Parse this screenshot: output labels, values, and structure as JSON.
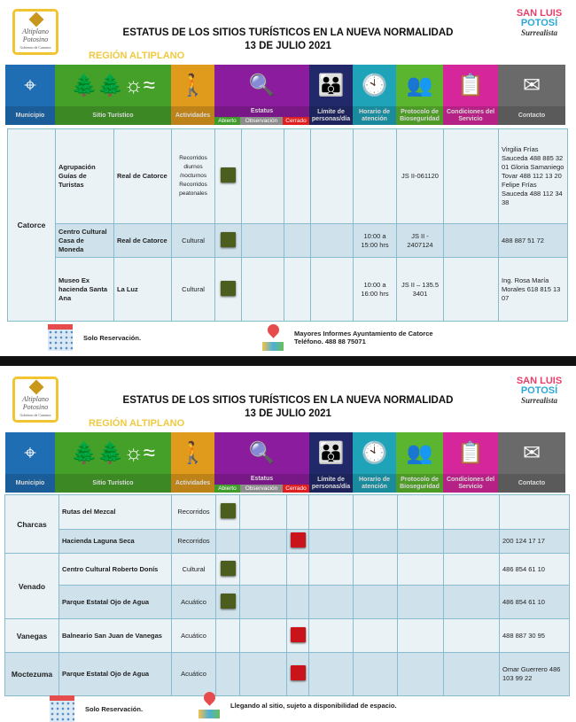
{
  "header": {
    "title_line1": "ESTATUS DE LOS SITIOS TURÍSTICOS EN LA NUEVA NORMALIDAD",
    "title_line2": "13 DE JULIO 2021",
    "region": "REGIÓN ALTIPLANO",
    "logo_left": "Altiplano Potosino",
    "logo_left_sub": "Gobierno de Caminos",
    "logo_right": [
      "SAN LUIS",
      "POTOSÍ",
      "Surrealista"
    ]
  },
  "columns": {
    "municipio": "Municipio",
    "sitio": "Sitio Turístico",
    "actividades": "Actividades",
    "estatus": "Estatus",
    "abierto": "Abierto",
    "observacion": "Observación",
    "cerrado": "Cerrado",
    "limite": "Límite de personas/día",
    "horario": "Horario de atención",
    "protocolo": "Protocolo de Bioseguridad",
    "condiciones": "Condiciones del Servicio",
    "contacto": "Contacto"
  },
  "colors": {
    "municipio": "#1f6db3",
    "sitio": "#45a02a",
    "actividades": "#e09a1c",
    "estatus": "#8c1c9e",
    "limite": "#22296b",
    "horario": "#1fa3b8",
    "protocolo": "#5bb52e",
    "condiciones": "#d5279b",
    "contacto": "#6a6a6a",
    "open": "#4b5e1e",
    "closed": "#c8141a"
  },
  "panel1": {
    "municipio": "Catorce",
    "rows": [
      {
        "sitio": "Agrupación Guías de Turistas",
        "localidad": "Real de Catorce",
        "actividades": "Recorridos diurnos /nocturnos Recorridos peatonales",
        "status": "abierto",
        "limite": "",
        "horario": "",
        "protocolo": "JS II-061120",
        "condiciones": "",
        "contacto": "Virgilia Frías Sauceda 488 885 32 01 Gloria Samaniego Tovar 488 112 13 20 Felipe Frías Sauceda 488 112 34 38"
      },
      {
        "sitio": "Centro Cultural Casa de Moneda",
        "localidad": "Real de Catorce",
        "actividades": "Cultural",
        "status": "abierto",
        "limite": "",
        "horario": "10:00 a 15:00 hrs",
        "protocolo": "JS II - 2407124",
        "condiciones": "",
        "contacto": "488 887 51 72"
      },
      {
        "sitio": "Museo Ex hacienda Santa Ana",
        "localidad": "La Luz",
        "actividades": "Cultural",
        "status": "abierto",
        "limite": "",
        "horario": "10:00 a 16:00 hrs",
        "protocolo": "JS II – 135.5 3401",
        "condiciones": "",
        "contacto": "Ing. Rosa María Morales 618 815 13 07"
      }
    ],
    "footer_reservation": "Solo Reservación.",
    "footer_info_line1": "Mayores Informes Ayuntamiento de Catorce",
    "footer_info_line2": "Teléfono. 488 88 75071"
  },
  "panel2": {
    "groups": [
      {
        "municipio": "Charcas",
        "rows": [
          {
            "sitio": "Rutas del Mezcal",
            "actividades": "Recorridos",
            "status": "abierto",
            "contacto": ""
          },
          {
            "sitio": "Hacienda Laguna Seca",
            "actividades": "Recorridos",
            "status": "cerrado",
            "contacto": "200 124 17 17"
          }
        ]
      },
      {
        "municipio": "Venado",
        "rows": [
          {
            "sitio": "Centro Cultural Roberto Donís",
            "actividades": "Cultural",
            "status": "abierto",
            "contacto": "486 854 61 10"
          },
          {
            "sitio": "Parque Estatal Ojo de Agua",
            "actividades": "Acuático",
            "status": "abierto",
            "contacto": "486 854 61 10"
          }
        ]
      },
      {
        "municipio": "Vanegas",
        "rows": [
          {
            "sitio": "Balneario San Juan de Vanegas",
            "actividades": "Acuático",
            "status": "cerrado",
            "contacto": "488 887 30 95"
          }
        ]
      },
      {
        "municipio": "Moctezuma",
        "rows": [
          {
            "sitio": "Parque Estatal Ojo de Agua",
            "actividades": "Acuático",
            "status": "cerrado",
            "contacto": "Omar Guerrero 486 103 99 22"
          }
        ]
      }
    ],
    "footer_reservation": "Solo Reservación.",
    "footer_info": "Llegando al sitio, sujeto a disponibilidad de espacio."
  }
}
